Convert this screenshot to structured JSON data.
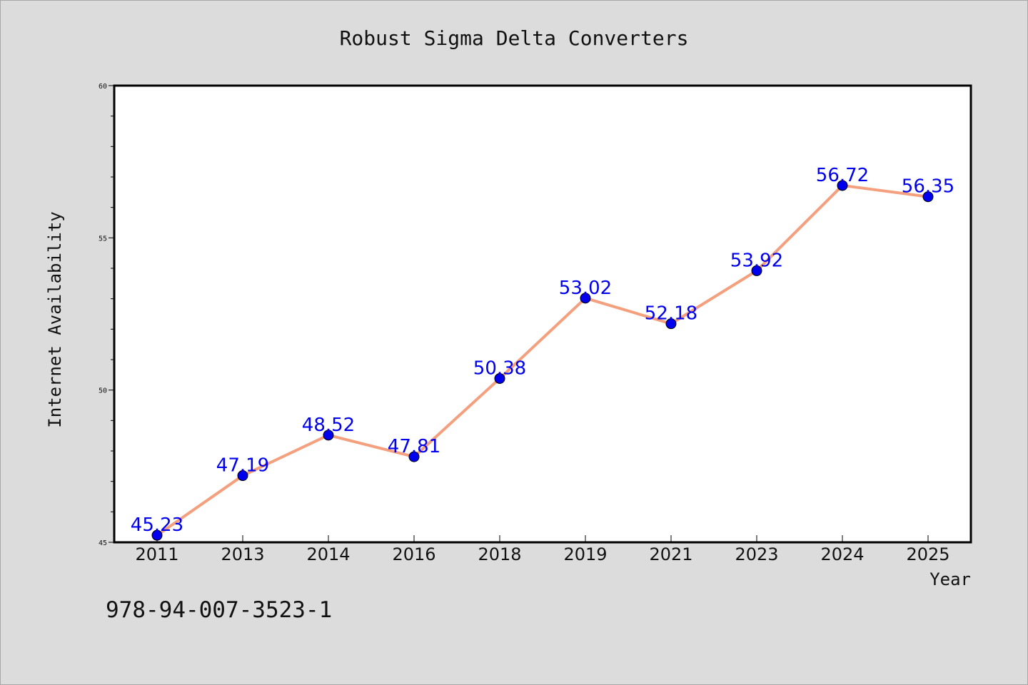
{
  "chart_data": {
    "type": "line",
    "title": "Robust Sigma Delta Converters",
    "xlabel": "Year",
    "ylabel": "Internet Availability",
    "categories": [
      "2011",
      "2013",
      "2014",
      "2016",
      "2018",
      "2019",
      "2021",
      "2023",
      "2024",
      "2025"
    ],
    "series": [
      {
        "values": [
          45.23,
          47.19,
          48.52,
          47.81,
          50.38,
          53.02,
          52.18,
          53.92,
          56.72,
          56.35
        ]
      }
    ],
    "data_labels": [
      "45.23",
      "47.19",
      "48.52",
      "47.81",
      "50.38",
      "53.02",
      "52.18",
      "53.92",
      "56.72",
      "56.35"
    ],
    "ylim": [
      45,
      60
    ],
    "y_ticks": [
      "45",
      "50",
      "55",
      "60"
    ],
    "grid": false,
    "line_color": "#f4a07e",
    "marker_color": "#0000ee",
    "label_color": "#0000ee",
    "background_color": "#dcdcdc"
  },
  "footer": {
    "isbn": "978-94-007-3523-1"
  }
}
